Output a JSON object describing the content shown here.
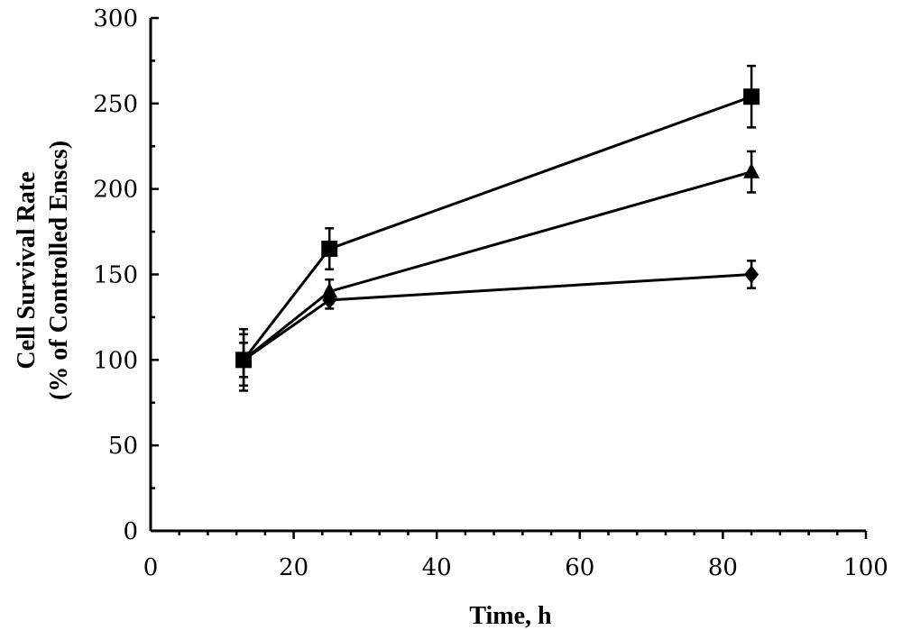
{
  "chart_data": {
    "type": "line",
    "title": "",
    "xlabel": "Time, h",
    "ylabel_line1": "Cell Survival Rate",
    "ylabel_line2": "(% of Controlled Enscs)",
    "xlim": [
      0,
      100
    ],
    "ylim": [
      0,
      300
    ],
    "x_ticks": [
      0,
      20,
      40,
      60,
      80,
      100
    ],
    "y_ticks": [
      0,
      50,
      100,
      150,
      200,
      250,
      300
    ],
    "grid": false,
    "legend": "none",
    "series": [
      {
        "marker": "diamond",
        "x": [
          13,
          25,
          84
        ],
        "y": [
          100,
          135,
          150
        ],
        "error": [
          18,
          5,
          8
        ]
      },
      {
        "marker": "triangle",
        "x": [
          13,
          25,
          84
        ],
        "y": [
          100,
          140,
          210
        ],
        "error": [
          15,
          7,
          12
        ]
      },
      {
        "marker": "square",
        "x": [
          13,
          25,
          84
        ],
        "y": [
          100,
          165,
          254
        ],
        "error": [
          10,
          12,
          18
        ]
      }
    ]
  },
  "colors": {
    "line": "#000000",
    "background": "#ffffff"
  }
}
